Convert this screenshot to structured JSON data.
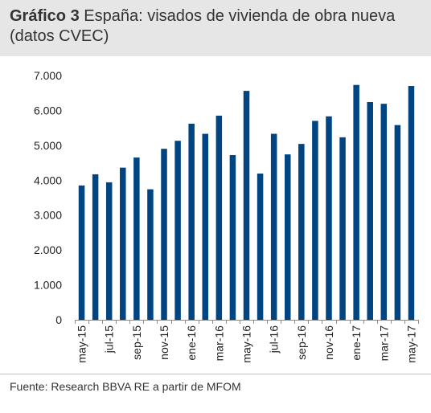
{
  "header": {
    "title_lead": "Gráfico 3",
    "title_rest": " España: visados de vivienda de obra nueva (datos CVEC)"
  },
  "source": "Fuente: Research BBVA RE a partir de MFOM",
  "colors": {
    "bar": "#004481",
    "header_bg": "#e6e6e6"
  },
  "chart_data": {
    "type": "bar",
    "title": "España: visados de vivienda de obra nueva (datos CVEC)",
    "xlabel": "",
    "ylabel": "",
    "ylim": [
      0,
      7000
    ],
    "yticks": [
      0,
      1000,
      2000,
      3000,
      4000,
      5000,
      6000,
      7000
    ],
    "ytick_labels": [
      "0",
      "1.000",
      "2.000",
      "3.000",
      "4.000",
      "5.000",
      "6.000",
      "7.000"
    ],
    "grid": false,
    "categories": [
      "may-15",
      "jun-15",
      "jul-15",
      "ago-15",
      "sep-15",
      "oct-15",
      "nov-15",
      "dic-15",
      "ene-16",
      "feb-16",
      "mar-16",
      "abr-16",
      "may-16",
      "jun-16",
      "jul-16",
      "ago-16",
      "sep-16",
      "oct-16",
      "nov-16",
      "dic-16",
      "ene-17",
      "feb-17",
      "mar-17",
      "abr-17",
      "may-17"
    ],
    "visible_tick_labels": [
      "may-15",
      "jul-15",
      "sep-15",
      "nov-15",
      "ene-16",
      "mar-16",
      "may-16",
      "jul-16",
      "sep-16",
      "nov-16",
      "ene-17",
      "mar-17",
      "may-17"
    ],
    "values": [
      3850,
      4170,
      3940,
      4360,
      4650,
      3740,
      4900,
      5130,
      5620,
      5330,
      5850,
      4720,
      6560,
      4190,
      5330,
      4740,
      5040,
      5700,
      5830,
      5230,
      6730,
      6240,
      6190,
      5580,
      6700
    ]
  }
}
